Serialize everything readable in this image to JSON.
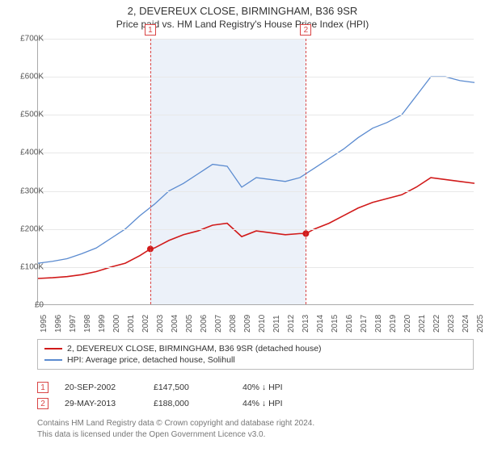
{
  "header": {
    "title": "2, DEVEREUX CLOSE, BIRMINGHAM, B36 9SR",
    "subtitle": "Price paid vs. HM Land Registry's House Price Index (HPI)"
  },
  "chart": {
    "type": "line",
    "background_color": "#ffffff",
    "grid_color": "#e8e8e8",
    "axis_color": "#aaaaaa",
    "ylabel_prefix": "£",
    "y": {
      "min": 0,
      "max": 700000,
      "step": 100000,
      "ticks": [
        "£0",
        "£100K",
        "£200K",
        "£300K",
        "£400K",
        "£500K",
        "£600K",
        "£700K"
      ]
    },
    "x": {
      "min": 1995,
      "max": 2025,
      "ticks": [
        1995,
        1996,
        1997,
        1998,
        1999,
        2000,
        2001,
        2002,
        2003,
        2004,
        2005,
        2006,
        2007,
        2008,
        2009,
        2010,
        2011,
        2012,
        2013,
        2014,
        2015,
        2016,
        2017,
        2018,
        2019,
        2020,
        2021,
        2022,
        2023,
        2024,
        2025
      ]
    },
    "band_color": "rgba(180,200,230,0.25)",
    "dash_color": "#d94545",
    "series": [
      {
        "name": "property",
        "color": "#d11a1a",
        "width": 1.6,
        "points": [
          [
            1995,
            70000
          ],
          [
            1996,
            72000
          ],
          [
            1997,
            75000
          ],
          [
            1998,
            80000
          ],
          [
            1999,
            88000
          ],
          [
            2000,
            100000
          ],
          [
            2001,
            110000
          ],
          [
            2002,
            130000
          ],
          [
            2002.72,
            147500
          ],
          [
            2003,
            150000
          ],
          [
            2004,
            170000
          ],
          [
            2005,
            185000
          ],
          [
            2006,
            195000
          ],
          [
            2007,
            210000
          ],
          [
            2008,
            215000
          ],
          [
            2009,
            180000
          ],
          [
            2010,
            195000
          ],
          [
            2011,
            190000
          ],
          [
            2012,
            185000
          ],
          [
            2013,
            188000
          ],
          [
            2013.41,
            188000
          ],
          [
            2014,
            200000
          ],
          [
            2015,
            215000
          ],
          [
            2016,
            235000
          ],
          [
            2017,
            255000
          ],
          [
            2018,
            270000
          ],
          [
            2019,
            280000
          ],
          [
            2020,
            290000
          ],
          [
            2021,
            310000
          ],
          [
            2022,
            335000
          ],
          [
            2023,
            330000
          ],
          [
            2024,
            325000
          ],
          [
            2025,
            320000
          ]
        ],
        "markers": [
          {
            "x": 2002.72,
            "y": 147500
          },
          {
            "x": 2013.41,
            "y": 188000
          }
        ]
      },
      {
        "name": "hpi",
        "color": "#5b8bd0",
        "width": 1.3,
        "points": [
          [
            1995,
            110000
          ],
          [
            1996,
            115000
          ],
          [
            1997,
            122000
          ],
          [
            1998,
            135000
          ],
          [
            1999,
            150000
          ],
          [
            2000,
            175000
          ],
          [
            2001,
            200000
          ],
          [
            2002,
            235000
          ],
          [
            2003,
            265000
          ],
          [
            2004,
            300000
          ],
          [
            2005,
            320000
          ],
          [
            2006,
            345000
          ],
          [
            2007,
            370000
          ],
          [
            2008,
            365000
          ],
          [
            2009,
            310000
          ],
          [
            2010,
            335000
          ],
          [
            2011,
            330000
          ],
          [
            2012,
            325000
          ],
          [
            2013,
            335000
          ],
          [
            2014,
            360000
          ],
          [
            2015,
            385000
          ],
          [
            2016,
            410000
          ],
          [
            2017,
            440000
          ],
          [
            2018,
            465000
          ],
          [
            2019,
            480000
          ],
          [
            2020,
            500000
          ],
          [
            2021,
            550000
          ],
          [
            2022,
            600000
          ],
          [
            2023,
            600000
          ],
          [
            2024,
            590000
          ],
          [
            2025,
            585000
          ]
        ]
      }
    ],
    "sale_markers": [
      {
        "label": "1",
        "x": 2002.72
      },
      {
        "label": "2",
        "x": 2013.41
      }
    ]
  },
  "legend": {
    "items": [
      {
        "color": "#d11a1a",
        "label": "2, DEVEREUX CLOSE, BIRMINGHAM, B36 9SR (detached house)"
      },
      {
        "color": "#5b8bd0",
        "label": "HPI: Average price, detached house, Solihull"
      }
    ]
  },
  "sales": [
    {
      "badge": "1",
      "date": "20-SEP-2002",
      "price": "£147,500",
      "diff": "40% ↓ HPI"
    },
    {
      "badge": "2",
      "date": "29-MAY-2013",
      "price": "£188,000",
      "diff": "44% ↓ HPI"
    }
  ],
  "footer": {
    "line1": "Contains HM Land Registry data © Crown copyright and database right 2024.",
    "line2": "This data is licensed under the Open Government Licence v3.0."
  }
}
